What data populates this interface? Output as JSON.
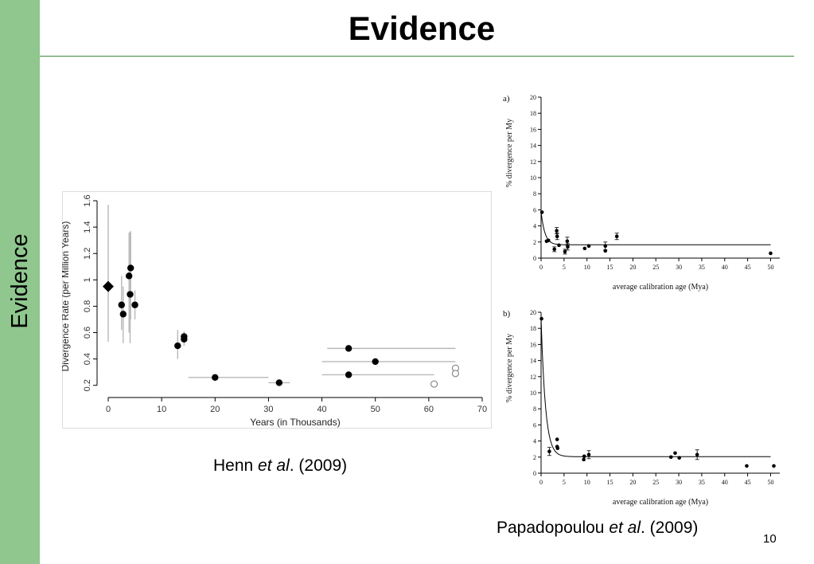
{
  "slide": {
    "title": "Evidence",
    "side_title": "Evidence",
    "page_number": "10",
    "sidebar_color": "#8fc78e",
    "rule_color": "#3d8a3a"
  },
  "captions": {
    "henn": {
      "author": "Henn ",
      "etal": "et al",
      "rest": ". (2009)"
    },
    "papa": {
      "author": "Papadopoulou ",
      "etal": "et al",
      "rest": ". (2009)"
    }
  },
  "chart_data": [
    {
      "type": "scatter",
      "xlabel": "Years (in Thousands)",
      "ylabel": "Divergence Rate (per Million Years)",
      "xlim": [
        0,
        70
      ],
      "ylim": [
        0.15,
        1.6
      ],
      "x_ticks": [
        "0",
        "10",
        "20",
        "30",
        "40",
        "50",
        "60",
        "70"
      ],
      "y_ticks": [
        "0.2",
        "0.4",
        "0.6",
        "0.8",
        "1",
        "1.2",
        "1.4",
        "1.6"
      ],
      "grid": false,
      "points_filled": [
        {
          "x": 2.5,
          "y": 0.81,
          "ylo": 0.62,
          "yhi": 1.03
        },
        {
          "x": 2.8,
          "y": 0.74,
          "ylo": 0.52,
          "yhi": 0.95
        },
        {
          "x": 3.9,
          "y": 1.03,
          "ylo": 0.6,
          "yhi": 1.36
        },
        {
          "x": 4.1,
          "y": 0.89,
          "ylo": 0.52,
          "yhi": 1.36
        },
        {
          "x": 4.2,
          "y": 1.09,
          "ylo": 0.7,
          "yhi": 1.37
        },
        {
          "x": 5,
          "y": 0.81,
          "ylo": 0.7,
          "yhi": 0.92
        },
        {
          "x": 13,
          "y": 0.5,
          "ylo": 0.4,
          "yhi": 0.62
        },
        {
          "x": 14.2,
          "y": 0.57,
          "ylo": 0.52,
          "yhi": 0.61
        },
        {
          "x": 14.2,
          "y": 0.55,
          "ylo": 0.5,
          "yhi": 0.6
        },
        {
          "x": 20,
          "y": 0.26,
          "xlo": 15,
          "xhi": 30
        },
        {
          "x": 32,
          "y": 0.22,
          "xlo": 30,
          "xhi": 34
        },
        {
          "x": 45,
          "y": 0.48,
          "xlo": 41,
          "xhi": 65
        },
        {
          "x": 50,
          "y": 0.38,
          "xlo": 40,
          "xhi": 65
        },
        {
          "x": 45,
          "y": 0.28,
          "xlo": 40,
          "xhi": 61
        }
      ],
      "points_open": [
        {
          "x": 61,
          "y": 0.21
        },
        {
          "x": 65,
          "y": 0.33
        },
        {
          "x": 65,
          "y": 0.29
        }
      ],
      "diamond": {
        "x": 0,
        "y": 0.95,
        "ylo": 0.53,
        "yhi": 1.57
      }
    },
    {
      "type": "scatter",
      "panel_label": "a)",
      "xlabel": "average calibration age (Mya)",
      "ylabel": "% divergence per My",
      "xlim": [
        0,
        52
      ],
      "ylim": [
        0,
        20
      ],
      "x_ticks": [
        "0",
        "5",
        "10",
        "15",
        "20",
        "25",
        "30",
        "35",
        "40",
        "45",
        "50"
      ],
      "y_ticks": [
        "0",
        "2",
        "4",
        "6",
        "8",
        "10",
        "12",
        "14",
        "16",
        "18",
        "20"
      ],
      "grid": false,
      "points": [
        {
          "x": 0.2,
          "y": 5.7
        },
        {
          "x": 1.2,
          "y": 2.1
        },
        {
          "x": 1.6,
          "y": 2.2
        },
        {
          "x": 2.9,
          "y": 1.1,
          "err": 0.3
        },
        {
          "x": 3.4,
          "y": 3.4,
          "err": 0.4
        },
        {
          "x": 3.5,
          "y": 2.7,
          "err": 0.4
        },
        {
          "x": 3.9,
          "y": 1.6
        },
        {
          "x": 5.2,
          "y": 0.8,
          "err": 0.3
        },
        {
          "x": 5.7,
          "y": 2.1,
          "err": 0.5
        },
        {
          "x": 5.8,
          "y": 1.4,
          "err": 0.4
        },
        {
          "x": 9.5,
          "y": 1.2
        },
        {
          "x": 10.4,
          "y": 1.5
        },
        {
          "x": 14,
          "y": 1.5,
          "err": 0.5
        },
        {
          "x": 14,
          "y": 0.9
        },
        {
          "x": 16.5,
          "y": 2.7,
          "err": 0.4
        },
        {
          "x": 50,
          "y": 0.6
        }
      ],
      "fit": {
        "asymptote": 1.65,
        "amplitude": 4.1,
        "decay_per_unit": 1.2
      }
    },
    {
      "type": "scatter",
      "panel_label": "b)",
      "xlabel": "average calibration age (Mya)",
      "ylabel": "% divergence per My",
      "xlim": [
        0,
        52
      ],
      "ylim": [
        0,
        20
      ],
      "x_ticks": [
        "0",
        "5",
        "10",
        "15",
        "20",
        "25",
        "30",
        "35",
        "40",
        "45",
        "50"
      ],
      "y_ticks": [
        "0",
        "2",
        "4",
        "6",
        "8",
        "10",
        "12",
        "14",
        "16",
        "18",
        "20"
      ],
      "grid": false,
      "points": [
        {
          "x": 0.1,
          "y": 19.2
        },
        {
          "x": 1.8,
          "y": 2.7,
          "err": 0.5
        },
        {
          "x": 3.5,
          "y": 4.2
        },
        {
          "x": 3.5,
          "y": 3.3
        },
        {
          "x": 3.6,
          "y": 3.1
        },
        {
          "x": 9.3,
          "y": 1.7
        },
        {
          "x": 9.4,
          "y": 2.1
        },
        {
          "x": 10.4,
          "y": 2.3,
          "err": 0.5
        },
        {
          "x": 28.3,
          "y": 2
        },
        {
          "x": 29.2,
          "y": 2.5
        },
        {
          "x": 30.1,
          "y": 1.9
        },
        {
          "x": 34,
          "y": 2.3,
          "err": 0.6
        },
        {
          "x": 44.8,
          "y": 0.9
        },
        {
          "x": 50.7,
          "y": 0.9
        }
      ],
      "fit": {
        "asymptote": 2.05,
        "amplitude": 17.2,
        "decay_per_unit": 1.05
      }
    }
  ]
}
